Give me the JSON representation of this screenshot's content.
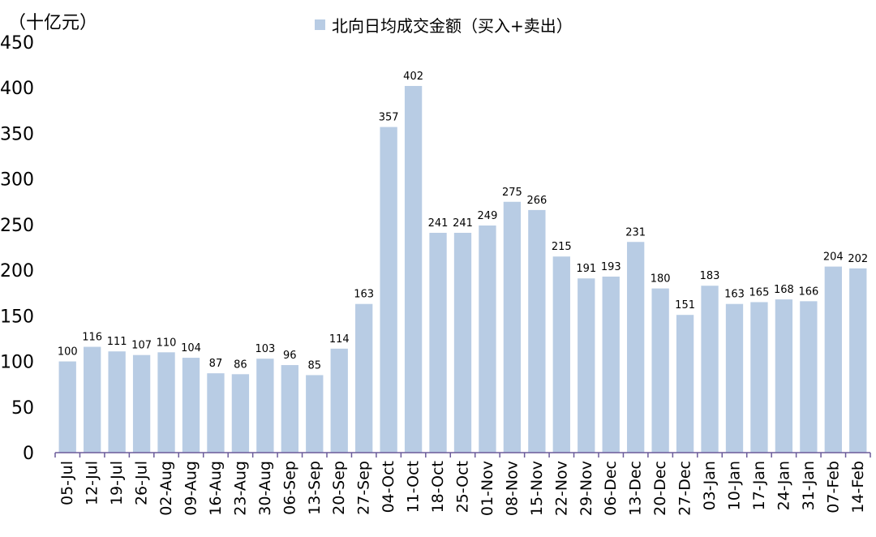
{
  "chart_data": {
    "type": "bar",
    "unit_label": "（十亿元）",
    "categories": [
      "05-Jul",
      "12-Jul",
      "19-Jul",
      "26-Jul",
      "02-Aug",
      "09-Aug",
      "16-Aug",
      "23-Aug",
      "30-Aug",
      "06-Sep",
      "13-Sep",
      "20-Sep",
      "27-Sep",
      "04-Oct",
      "11-Oct",
      "18-Oct",
      "25-Oct",
      "01-Nov",
      "08-Nov",
      "15-Nov",
      "22-Nov",
      "29-Nov",
      "06-Dec",
      "13-Dec",
      "20-Dec",
      "27-Dec",
      "03-Jan",
      "10-Jan",
      "17-Jan",
      "24-Jan",
      "31-Jan",
      "07-Feb",
      "14-Feb"
    ],
    "series": [
      {
        "name": "北向日均成交金额（买入+卖出）",
        "values": [
          100,
          116,
          111,
          107,
          110,
          104,
          87,
          86,
          103,
          96,
          85,
          114,
          163,
          357,
          402,
          241,
          241,
          249,
          275,
          266,
          215,
          191,
          193,
          231,
          180,
          151,
          183,
          163,
          165,
          168,
          166,
          204,
          202
        ]
      }
    ],
    "ylim": [
      0,
      450
    ],
    "yticks": [
      0,
      50,
      100,
      150,
      200,
      250,
      300,
      350,
      400,
      450
    ],
    "legend_position": "top",
    "grid": false,
    "colors": {
      "bar": "#b8cce4",
      "axis": "#6b5b9a"
    }
  }
}
